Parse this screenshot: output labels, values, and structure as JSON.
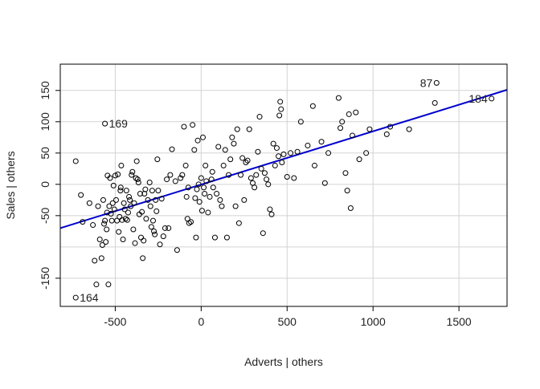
{
  "chart_data": {
    "type": "scatter",
    "title": "",
    "xlabel": "Adverts | others",
    "ylabel": "Sales | others",
    "xlim": [
      -820,
      1780
    ],
    "ylim": [
      -195,
      192
    ],
    "x_ticks": [
      -500,
      0,
      500,
      1000,
      1500
    ],
    "y_ticks": [
      -150,
      -50,
      0,
      50,
      100,
      150
    ],
    "y_tick_labels": [
      "-150",
      "-50",
      "0",
      "50",
      "100",
      "150"
    ],
    "x_tick_labels": [
      "-500",
      "0",
      "500",
      "1000",
      "1500"
    ],
    "grid": true,
    "grid_y": [
      -150,
      -100,
      -50,
      0,
      50,
      100,
      150
    ],
    "colors": {
      "points": "#000000",
      "fit_line": "#0000cc",
      "grid": "#d3d3d3",
      "frame": "#000000"
    },
    "fit_line": {
      "x": [
        -820,
        1780
      ],
      "y": [
        -70,
        151
      ]
    },
    "labeled_points": [
      {
        "label": "87",
        "x": 1370,
        "y": 162
      },
      {
        "label": "184",
        "x": 1690,
        "y": 137
      },
      {
        "label": "169",
        "x": -560,
        "y": 97
      },
      {
        "label": "164",
        "x": -730,
        "y": -181
      }
    ],
    "points": [
      [
        -730,
        37
      ],
      [
        -700,
        -17
      ],
      [
        -690,
        -60
      ],
      [
        -650,
        -30
      ],
      [
        -630,
        -65
      ],
      [
        -620,
        -122
      ],
      [
        -610,
        -160
      ],
      [
        -600,
        -35
      ],
      [
        -590,
        -88
      ],
      [
        -580,
        -118
      ],
      [
        -575,
        -97
      ],
      [
        -570,
        -25
      ],
      [
        -565,
        -63
      ],
      [
        -560,
        -58
      ],
      [
        -555,
        -92
      ],
      [
        -550,
        -72
      ],
      [
        -548,
        -45
      ],
      [
        -545,
        14
      ],
      [
        -540,
        -160
      ],
      [
        -535,
        -35
      ],
      [
        -530,
        10
      ],
      [
        -525,
        -47
      ],
      [
        -520,
        -58
      ],
      [
        -515,
        -30
      ],
      [
        -510,
        -2
      ],
      [
        -505,
        -40
      ],
      [
        -500,
        14
      ],
      [
        -495,
        -25
      ],
      [
        -490,
        -58
      ],
      [
        -485,
        16
      ],
      [
        -480,
        -76
      ],
      [
        -475,
        -52
      ],
      [
        -470,
        -10
      ],
      [
        -468,
        -5
      ],
      [
        -465,
        30
      ],
      [
        -460,
        -57
      ],
      [
        -455,
        -88
      ],
      [
        -450,
        -30
      ],
      [
        -445,
        -40
      ],
      [
        -440,
        -55
      ],
      [
        -435,
        -10
      ],
      [
        -430,
        -57
      ],
      [
        -425,
        -45
      ],
      [
        -420,
        -20
      ],
      [
        -415,
        -25
      ],
      [
        -410,
        -35
      ],
      [
        -405,
        15
      ],
      [
        -400,
        20
      ],
      [
        -395,
        -72
      ],
      [
        -390,
        -30
      ],
      [
        -385,
        -94
      ],
      [
        -380,
        10
      ],
      [
        -375,
        37
      ],
      [
        -370,
        8
      ],
      [
        -365,
        3
      ],
      [
        -360,
        -48
      ],
      [
        -355,
        -15
      ],
      [
        -350,
        -85
      ],
      [
        -345,
        -44
      ],
      [
        -340,
        -118
      ],
      [
        -335,
        -90
      ],
      [
        -330,
        -15
      ],
      [
        -325,
        -8
      ],
      [
        -320,
        -55
      ],
      [
        -310,
        -25
      ],
      [
        -300,
        3
      ],
      [
        -295,
        -35
      ],
      [
        -290,
        -68
      ],
      [
        -285,
        -10
      ],
      [
        -280,
        -58
      ],
      [
        -275,
        -75
      ],
      [
        -270,
        -80
      ],
      [
        -265,
        -25
      ],
      [
        -260,
        -43
      ],
      [
        -255,
        40
      ],
      [
        -250,
        -10
      ],
      [
        -240,
        -96
      ],
      [
        -230,
        -23
      ],
      [
        -220,
        -83
      ],
      [
        -210,
        -70
      ],
      [
        -200,
        8
      ],
      [
        -190,
        -70
      ],
      [
        -180,
        15
      ],
      [
        -170,
        56
      ],
      [
        -150,
        5
      ],
      [
        -140,
        -105
      ],
      [
        -120,
        10
      ],
      [
        -110,
        15
      ],
      [
        -100,
        92
      ],
      [
        -90,
        30
      ],
      [
        -85,
        -20
      ],
      [
        -80,
        -55
      ],
      [
        -75,
        -5
      ],
      [
        -70,
        -62
      ],
      [
        -60,
        -60
      ],
      [
        -50,
        95
      ],
      [
        -40,
        55
      ],
      [
        -35,
        -22
      ],
      [
        -30,
        -85
      ],
      [
        -25,
        -8
      ],
      [
        -20,
        70
      ],
      [
        -15,
        0
      ],
      [
        -10,
        -28
      ],
      [
        0,
        10
      ],
      [
        5,
        -42
      ],
      [
        10,
        75
      ],
      [
        15,
        -5
      ],
      [
        20,
        -15
      ],
      [
        25,
        30
      ],
      [
        30,
        5
      ],
      [
        40,
        -45
      ],
      [
        50,
        -20
      ],
      [
        60,
        8
      ],
      [
        65,
        20
      ],
      [
        70,
        -5
      ],
      [
        80,
        -85
      ],
      [
        90,
        -15
      ],
      [
        100,
        60
      ],
      [
        110,
        -25
      ],
      [
        120,
        -35
      ],
      [
        130,
        30
      ],
      [
        140,
        55
      ],
      [
        150,
        -85
      ],
      [
        160,
        15
      ],
      [
        170,
        40
      ],
      [
        180,
        75
      ],
      [
        190,
        65
      ],
      [
        200,
        -35
      ],
      [
        210,
        88
      ],
      [
        220,
        -62
      ],
      [
        230,
        15
      ],
      [
        240,
        42
      ],
      [
        250,
        -25
      ],
      [
        260,
        35
      ],
      [
        270,
        38
      ],
      [
        280,
        88
      ],
      [
        290,
        10
      ],
      [
        300,
        2
      ],
      [
        310,
        -5
      ],
      [
        320,
        15
      ],
      [
        330,
        52
      ],
      [
        340,
        108
      ],
      [
        350,
        25
      ],
      [
        360,
        -78
      ],
      [
        370,
        18
      ],
      [
        380,
        8
      ],
      [
        390,
        0
      ],
      [
        400,
        -40
      ],
      [
        410,
        -48
      ],
      [
        420,
        65
      ],
      [
        430,
        30
      ],
      [
        440,
        58
      ],
      [
        450,
        45
      ],
      [
        455,
        110
      ],
      [
        460,
        132
      ],
      [
        465,
        120
      ],
      [
        470,
        35
      ],
      [
        480,
        48
      ],
      [
        500,
        12
      ],
      [
        520,
        50
      ],
      [
        540,
        10
      ],
      [
        560,
        52
      ],
      [
        580,
        100
      ],
      [
        620,
        62
      ],
      [
        650,
        125
      ],
      [
        660,
        30
      ],
      [
        700,
        68
      ],
      [
        720,
        2
      ],
      [
        740,
        50
      ],
      [
        800,
        138
      ],
      [
        810,
        90
      ],
      [
        820,
        100
      ],
      [
        840,
        18
      ],
      [
        850,
        -10
      ],
      [
        860,
        112
      ],
      [
        870,
        -38
      ],
      [
        880,
        78
      ],
      [
        900,
        115
      ],
      [
        920,
        40
      ],
      [
        960,
        50
      ],
      [
        980,
        88
      ],
      [
        1080,
        80
      ],
      [
        1100,
        92
      ],
      [
        1210,
        88
      ],
      [
        1360,
        130
      ]
    ]
  }
}
